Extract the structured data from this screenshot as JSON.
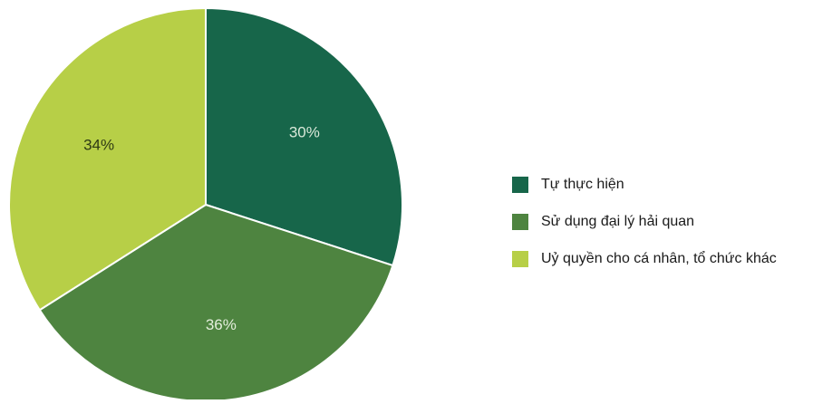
{
  "chart_data": {
    "type": "pie",
    "title": "",
    "slices": [
      {
        "label": "Tự thực hiện",
        "value": 30,
        "display": "30%",
        "color": "#17664a",
        "label_color": "#d9e8d9"
      },
      {
        "label": "Sử dụng đại lý hải quan",
        "value": 36,
        "display": "36%",
        "color": "#4e8440",
        "label_color": "#e4eedc"
      },
      {
        "label": "Uỷ quyền cho cá nhân, tổ chức khác",
        "value": 34,
        "display": "34%",
        "color": "#b7cf47",
        "label_color": "#2e3a14"
      }
    ],
    "start_angle": "12 o'clock",
    "direction": "clockwise",
    "legend_position": "right"
  }
}
